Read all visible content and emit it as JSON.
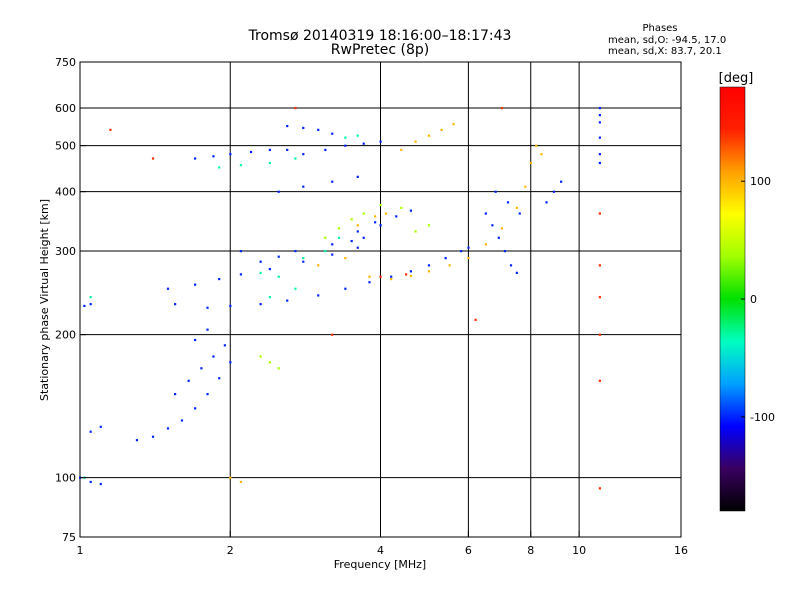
{
  "chart_data": {
    "type": "scatter",
    "title": "Tromsø 20140319 18:16:00–18:17:43",
    "subtitle": "RwPretec (8p)",
    "stats": {
      "heading": "Phases",
      "line_o": "mean, sd,O: -94.5, 17.0",
      "line_x": "mean, sd,X:  83.7, 20.1"
    },
    "xlabel": "Frequency [MHz]",
    "ylabel": "Stationary phase Virtual Height [km]",
    "x_scale": "log",
    "y_scale": "log",
    "xlim": [
      1,
      16
    ],
    "ylim": [
      75,
      750
    ],
    "x_ticks": [
      1,
      2,
      4,
      6,
      8,
      10,
      16
    ],
    "x_tick_labels": [
      "1",
      "2",
      "4",
      "6",
      "8",
      "10",
      "16"
    ],
    "x_grid": [
      2,
      4,
      6,
      8,
      10
    ],
    "y_ticks": [
      75,
      100,
      200,
      300,
      400,
      500,
      600,
      750
    ],
    "y_tick_labels": [
      "75",
      "100",
      "200",
      "300",
      "400",
      "500",
      "600",
      "750"
    ],
    "y_grid": [
      100,
      200,
      300,
      400,
      500,
      600
    ],
    "grid": true,
    "colorbar": {
      "label": "[deg]",
      "range": [
        -180,
        180
      ],
      "ticks": [
        100,
        0,
        -100
      ],
      "tick_labels": [
        "100",
        "0",
        "-100"
      ],
      "colors": [
        "#000000",
        "#3a0060",
        "#0000ff",
        "#00a0ff",
        "#00ffc0",
        "#00e000",
        "#a0ff00",
        "#ffff00",
        "#ffa000",
        "#ff2000",
        "#ff0000"
      ]
    },
    "series": [
      {
        "phase_deg": -100,
        "points": [
          [
            1.3,
            120
          ],
          [
            1.4,
            122
          ],
          [
            1.5,
            127
          ],
          [
            1.6,
            132
          ],
          [
            1.7,
            140
          ],
          [
            1.8,
            150
          ],
          [
            1.9,
            162
          ],
          [
            2.0,
            175
          ],
          [
            1.55,
            150
          ],
          [
            1.65,
            160
          ],
          [
            1.75,
            170
          ],
          [
            1.85,
            180
          ],
          [
            1.95,
            190
          ],
          [
            1.7,
            195
          ],
          [
            1.8,
            205
          ],
          [
            1.55,
            232
          ],
          [
            1.8,
            228
          ],
          [
            2.0,
            230
          ],
          [
            2.3,
            232
          ],
          [
            2.6,
            236
          ],
          [
            3.0,
            242
          ],
          [
            3.4,
            250
          ],
          [
            3.8,
            258
          ],
          [
            4.2,
            265
          ],
          [
            4.6,
            272
          ],
          [
            5.0,
            280
          ],
          [
            5.4,
            290
          ],
          [
            5.8,
            300
          ],
          [
            6.0,
            305
          ],
          [
            1.5,
            250
          ],
          [
            1.7,
            255
          ],
          [
            1.9,
            262
          ],
          [
            2.1,
            268
          ],
          [
            2.4,
            275
          ],
          [
            2.8,
            285
          ],
          [
            3.2,
            295
          ],
          [
            3.6,
            305
          ],
          [
            2.1,
            300
          ],
          [
            2.3,
            285
          ],
          [
            2.5,
            292
          ],
          [
            2.7,
            300
          ],
          [
            3.2,
            310
          ],
          [
            3.6,
            330
          ],
          [
            3.9,
            345
          ],
          [
            3.5,
            315
          ],
          [
            3.7,
            320
          ],
          [
            4.0,
            340
          ],
          [
            4.3,
            355
          ],
          [
            4.6,
            365
          ],
          [
            2.5,
            400
          ],
          [
            2.8,
            410
          ],
          [
            3.2,
            420
          ],
          [
            3.6,
            430
          ],
          [
            1.7,
            470
          ],
          [
            1.85,
            475
          ],
          [
            2.0,
            480
          ],
          [
            2.2,
            485
          ],
          [
            2.4,
            490
          ],
          [
            2.6,
            490
          ],
          [
            2.8,
            480
          ],
          [
            3.1,
            490
          ],
          [
            3.4,
            500
          ],
          [
            3.7,
            505
          ],
          [
            4.0,
            510
          ],
          [
            2.6,
            550
          ],
          [
            2.8,
            545
          ],
          [
            3.0,
            540
          ],
          [
            3.2,
            530
          ],
          [
            6.5,
            360
          ],
          [
            6.7,
            340
          ],
          [
            6.9,
            320
          ],
          [
            7.1,
            300
          ],
          [
            7.3,
            280
          ],
          [
            7.5,
            270
          ],
          [
            6.8,
            400
          ],
          [
            7.2,
            380
          ],
          [
            7.6,
            360
          ],
          [
            8.6,
            380
          ],
          [
            8.9,
            400
          ],
          [
            9.2,
            420
          ],
          [
            1.0,
            100
          ],
          [
            1.05,
            98
          ],
          [
            1.1,
            97
          ],
          [
            1.05,
            125
          ],
          [
            1.1,
            128
          ],
          [
            1.02,
            230
          ],
          [
            1.05,
            232
          ],
          [
            11.0,
            600
          ],
          [
            11.0,
            580
          ],
          [
            11.0,
            560
          ],
          [
            11.0,
            520
          ],
          [
            11.0,
            480
          ],
          [
            11.0,
            460
          ]
        ]
      },
      {
        "phase_deg": -30,
        "points": [
          [
            2.3,
            270
          ],
          [
            2.5,
            265
          ],
          [
            2.8,
            290
          ],
          [
            3.1,
            300
          ],
          [
            3.3,
            320
          ],
          [
            2.4,
            240
          ],
          [
            2.7,
            250
          ],
          [
            2.1,
            455
          ],
          [
            2.4,
            460
          ],
          [
            2.7,
            470
          ],
          [
            1.9,
            450
          ],
          [
            3.4,
            520
          ],
          [
            3.6,
            525
          ],
          [
            1.05,
            240
          ],
          [
            1.02,
            100
          ]
        ]
      },
      {
        "phase_deg": 40,
        "points": [
          [
            3.1,
            320
          ],
          [
            3.3,
            335
          ],
          [
            3.5,
            350
          ],
          [
            3.7,
            360
          ],
          [
            4.0,
            375
          ],
          [
            4.4,
            370
          ],
          [
            2.3,
            180
          ],
          [
            2.4,
            175
          ],
          [
            2.5,
            170
          ],
          [
            4.7,
            330
          ],
          [
            5.0,
            340
          ]
        ]
      },
      {
        "phase_deg": 100,
        "points": [
          [
            3.0,
            280
          ],
          [
            3.4,
            290
          ],
          [
            3.8,
            265
          ],
          [
            4.2,
            262
          ],
          [
            4.6,
            266
          ],
          [
            5.0,
            272
          ],
          [
            5.5,
            280
          ],
          [
            6.0,
            290
          ],
          [
            6.5,
            310
          ],
          [
            7.0,
            335
          ],
          [
            7.5,
            370
          ],
          [
            7.8,
            410
          ],
          [
            8.0,
            460
          ],
          [
            4.4,
            490
          ],
          [
            4.7,
            510
          ],
          [
            5.0,
            525
          ],
          [
            5.3,
            540
          ],
          [
            5.6,
            555
          ],
          [
            3.6,
            340
          ],
          [
            3.9,
            355
          ],
          [
            4.1,
            360
          ],
          [
            2.0,
            100
          ],
          [
            2.1,
            98
          ],
          [
            8.2,
            500
          ],
          [
            8.4,
            480
          ]
        ]
      },
      {
        "phase_deg": 140,
        "points": [
          [
            4.0,
            265
          ],
          [
            4.5,
            268
          ],
          [
            11.0,
            95
          ],
          [
            11.0,
            160
          ],
          [
            11.0,
            200
          ],
          [
            11.0,
            240
          ],
          [
            11.0,
            280
          ],
          [
            11.0,
            360
          ],
          [
            1.15,
            540
          ],
          [
            1.4,
            470
          ],
          [
            2.7,
            600
          ],
          [
            7.0,
            600
          ],
          [
            6.2,
            215
          ],
          [
            3.2,
            200
          ]
        ]
      }
    ]
  }
}
